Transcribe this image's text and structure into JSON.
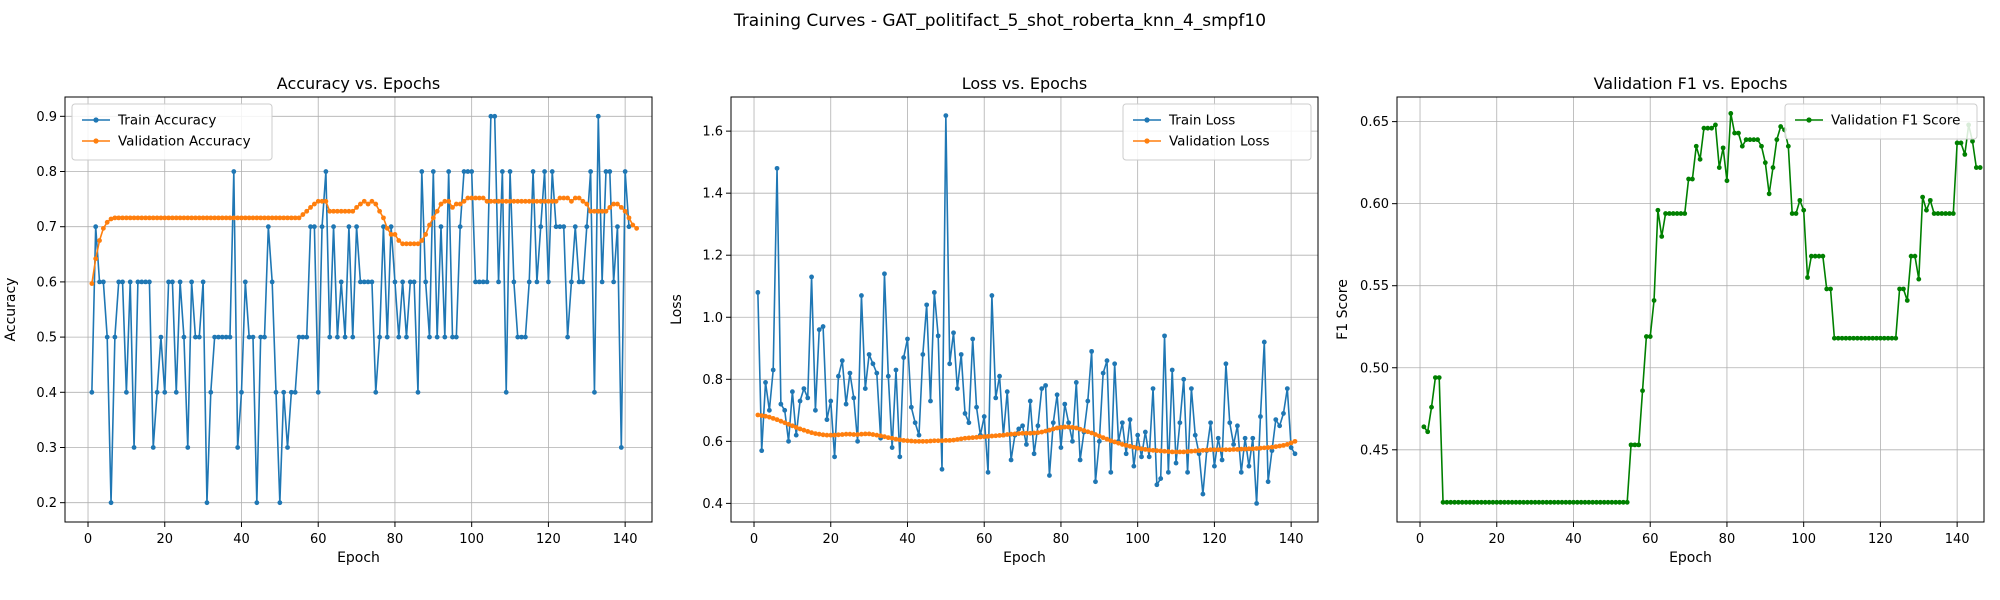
{
  "figure": {
    "suptitle": "Training Curves - GAT_politifact_5_shot_roberta_knn_4_smpf10"
  },
  "colors": {
    "train": "#1f77b4",
    "validation": "#ff7f0e",
    "f1": "#008000",
    "grid": "#b0b0b0"
  },
  "chart_data": [
    {
      "type": "line",
      "title": "Accuracy vs. Epochs",
      "xlabel": "Epoch",
      "ylabel": "Accuracy",
      "xlim": [
        -6,
        147
      ],
      "ylim": [
        0.165,
        0.935
      ],
      "xticks": [
        0,
        20,
        40,
        60,
        80,
        100,
        120,
        140
      ],
      "yticks": [
        0.2,
        0.3,
        0.4,
        0.5,
        0.6,
        0.7,
        0.8,
        0.9
      ],
      "grid": true,
      "legend": "upper-left",
      "x_start": 1,
      "series": [
        {
          "name": "Train Accuracy",
          "color": "#1f77b4",
          "values": [
            0.4,
            0.7,
            0.6,
            0.6,
            0.5,
            0.2,
            0.5,
            0.6,
            0.6,
            0.4,
            0.6,
            0.3,
            0.6,
            0.6,
            0.6,
            0.6,
            0.3,
            0.4,
            0.5,
            0.4,
            0.6,
            0.6,
            0.4,
            0.6,
            0.5,
            0.3,
            0.6,
            0.5,
            0.5,
            0.6,
            0.2,
            0.4,
            0.5,
            0.5,
            0.5,
            0.5,
            0.5,
            0.8,
            0.3,
            0.4,
            0.6,
            0.5,
            0.5,
            0.2,
            0.5,
            0.5,
            0.7,
            0.6,
            0.4,
            0.2,
            0.4,
            0.3,
            0.4,
            0.4,
            0.5,
            0.5,
            0.5,
            0.7,
            0.7,
            0.4,
            0.7,
            0.8,
            0.5,
            0.7,
            0.5,
            0.6,
            0.5,
            0.7,
            0.5,
            0.7,
            0.6,
            0.6,
            0.6,
            0.6,
            0.4,
            0.5,
            0.7,
            0.5,
            0.7,
            0.6,
            0.5,
            0.6,
            0.5,
            0.6,
            0.6,
            0.4,
            0.8,
            0.6,
            0.5,
            0.8,
            0.5,
            0.7,
            0.5,
            0.8,
            0.5,
            0.5,
            0.7,
            0.8,
            0.8,
            0.8,
            0.6,
            0.6,
            0.6,
            0.6,
            0.9,
            0.9,
            0.6,
            0.8,
            0.4,
            0.8,
            0.6,
            0.5,
            0.5,
            0.5,
            0.6,
            0.8,
            0.6,
            0.7,
            0.8,
            0.6,
            0.8,
            0.7,
            0.7,
            0.7,
            0.5,
            0.6,
            0.7,
            0.6,
            0.6,
            0.7,
            0.8,
            0.4,
            0.9,
            0.6,
            0.8,
            0.8,
            0.6,
            0.7,
            0.3,
            0.8,
            0.7
          ]
        },
        {
          "name": "Validation Accuracy",
          "color": "#ff7f0e",
          "values": [
            0.597,
            0.642,
            0.675,
            0.697,
            0.708,
            0.714,
            0.716,
            0.716,
            0.716,
            0.716,
            0.716,
            0.716,
            0.716,
            0.716,
            0.716,
            0.716,
            0.716,
            0.716,
            0.716,
            0.716,
            0.716,
            0.716,
            0.716,
            0.716,
            0.716,
            0.716,
            0.716,
            0.716,
            0.716,
            0.716,
            0.716,
            0.716,
            0.716,
            0.716,
            0.716,
            0.716,
            0.716,
            0.716,
            0.716,
            0.716,
            0.716,
            0.716,
            0.716,
            0.716,
            0.716,
            0.716,
            0.716,
            0.716,
            0.716,
            0.716,
            0.716,
            0.716,
            0.716,
            0.716,
            0.716,
            0.722,
            0.728,
            0.735,
            0.741,
            0.746,
            0.746,
            0.746,
            0.728,
            0.728,
            0.728,
            0.728,
            0.728,
            0.728,
            0.728,
            0.735,
            0.741,
            0.746,
            0.741,
            0.746,
            0.741,
            0.728,
            0.716,
            0.697,
            0.686,
            0.686,
            0.675,
            0.669,
            0.669,
            0.669,
            0.669,
            0.669,
            0.675,
            0.686,
            0.703,
            0.716,
            0.728,
            0.741,
            0.746,
            0.746,
            0.735,
            0.741,
            0.741,
            0.746,
            0.752,
            0.752,
            0.752,
            0.752,
            0.752,
            0.746,
            0.746,
            0.746,
            0.746,
            0.746,
            0.746,
            0.746,
            0.746,
            0.746,
            0.746,
            0.746,
            0.746,
            0.746,
            0.746,
            0.746,
            0.746,
            0.746,
            0.746,
            0.746,
            0.752,
            0.752,
            0.752,
            0.746,
            0.752,
            0.752,
            0.746,
            0.741,
            0.728,
            0.728,
            0.728,
            0.728,
            0.728,
            0.735,
            0.741,
            0.741,
            0.735,
            0.728,
            0.716,
            0.703,
            0.697
          ]
        }
      ]
    },
    {
      "type": "line",
      "title": "Loss vs. Epochs",
      "xlabel": "Epoch",
      "ylabel": "Loss",
      "xlim": [
        -6,
        147
      ],
      "ylim": [
        0.34,
        1.71
      ],
      "xticks": [
        0,
        20,
        40,
        60,
        80,
        100,
        120,
        140
      ],
      "yticks": [
        0.4,
        0.6,
        0.8,
        1.0,
        1.2,
        1.4,
        1.6
      ],
      "ytick_format": "1",
      "grid": true,
      "legend": "upper-right",
      "x_start": 1,
      "series": [
        {
          "name": "Train Loss",
          "color": "#1f77b4",
          "values": [
            1.08,
            0.57,
            0.79,
            0.7,
            0.83,
            1.48,
            0.72,
            0.7,
            0.6,
            0.76,
            0.62,
            0.73,
            0.77,
            0.74,
            1.13,
            0.7,
            0.96,
            0.97,
            0.67,
            0.73,
            0.55,
            0.81,
            0.86,
            0.72,
            0.82,
            0.74,
            0.6,
            1.07,
            0.77,
            0.88,
            0.85,
            0.82,
            0.61,
            1.14,
            0.81,
            0.58,
            0.83,
            0.55,
            0.87,
            0.93,
            0.71,
            0.66,
            0.62,
            0.88,
            1.04,
            0.73,
            1.08,
            0.94,
            0.51,
            1.65,
            0.85,
            0.95,
            0.77,
            0.88,
            0.69,
            0.66,
            0.93,
            0.71,
            0.62,
            0.68,
            0.5,
            1.07,
            0.74,
            0.81,
            0.62,
            0.76,
            0.54,
            0.62,
            0.64,
            0.65,
            0.59,
            0.73,
            0.56,
            0.65,
            0.77,
            0.78,
            0.49,
            0.66,
            0.75,
            0.58,
            0.72,
            0.66,
            0.6,
            0.79,
            0.54,
            0.63,
            0.73,
            0.89,
            0.47,
            0.6,
            0.82,
            0.86,
            0.5,
            0.85,
            0.6,
            0.66,
            0.56,
            0.67,
            0.52,
            0.62,
            0.55,
            0.63,
            0.55,
            0.77,
            0.46,
            0.48,
            0.94,
            0.5,
            0.83,
            0.53,
            0.66,
            0.8,
            0.5,
            0.77,
            0.62,
            0.56,
            0.43,
            0.57,
            0.66,
            0.52,
            0.61,
            0.54,
            0.85,
            0.66,
            0.59,
            0.65,
            0.5,
            0.61,
            0.52,
            0.61,
            0.4,
            0.68,
            0.92,
            0.47,
            0.57,
            0.67,
            0.65,
            0.69,
            0.77,
            0.58,
            0.56
          ]
        },
        {
          "name": "Validation Loss",
          "color": "#ff7f0e",
          "values": [
            0.685,
            0.683,
            0.681,
            0.678,
            0.674,
            0.67,
            0.665,
            0.66,
            0.655,
            0.65,
            0.645,
            0.64,
            0.636,
            0.632,
            0.628,
            0.625,
            0.623,
            0.621,
            0.62,
            0.62,
            0.62,
            0.621,
            0.622,
            0.623,
            0.623,
            0.622,
            0.622,
            0.623,
            0.624,
            0.624,
            0.622,
            0.62,
            0.618,
            0.615,
            0.612,
            0.61,
            0.607,
            0.605,
            0.603,
            0.602,
            0.601,
            0.6,
            0.6,
            0.6,
            0.6,
            0.601,
            0.602,
            0.602,
            0.602,
            0.603,
            0.603,
            0.604,
            0.606,
            0.608,
            0.61,
            0.611,
            0.612,
            0.613,
            0.614,
            0.615,
            0.616,
            0.617,
            0.618,
            0.619,
            0.62,
            0.622,
            0.623,
            0.624,
            0.625,
            0.626,
            0.626,
            0.626,
            0.627,
            0.628,
            0.63,
            0.633,
            0.636,
            0.64,
            0.643,
            0.645,
            0.646,
            0.646,
            0.645,
            0.643,
            0.639,
            0.635,
            0.631,
            0.627,
            0.622,
            0.617,
            0.612,
            0.607,
            0.602,
            0.598,
            0.594,
            0.59,
            0.587,
            0.584,
            0.581,
            0.578,
            0.576,
            0.574,
            0.572,
            0.571,
            0.57,
            0.569,
            0.568,
            0.567,
            0.566,
            0.566,
            0.566,
            0.566,
            0.567,
            0.568,
            0.569,
            0.57,
            0.571,
            0.572,
            0.573,
            0.573,
            0.573,
            0.573,
            0.573,
            0.573,
            0.574,
            0.574,
            0.575,
            0.575,
            0.576,
            0.576,
            0.577,
            0.578,
            0.579,
            0.58,
            0.581,
            0.583,
            0.585,
            0.587,
            0.59,
            0.595,
            0.6
          ]
        }
      ]
    },
    {
      "type": "line",
      "title": "Validation F1 vs. Epochs",
      "xlabel": "Epoch",
      "ylabel": "F1 Score",
      "xlim": [
        -6,
        147
      ],
      "ylim": [
        0.406,
        0.665
      ],
      "xticks": [
        0,
        20,
        40,
        60,
        80,
        100,
        120,
        140
      ],
      "yticks": [
        0.45,
        0.5,
        0.55,
        0.6,
        0.65
      ],
      "ytick_format": "2",
      "grid": true,
      "legend": "upper-right",
      "x_start": 1,
      "series": [
        {
          "name": "Validation F1 Score",
          "color": "#008000",
          "values": [
            0.464,
            0.461,
            0.476,
            0.494,
            0.494,
            0.418,
            0.418,
            0.418,
            0.418,
            0.418,
            0.418,
            0.418,
            0.418,
            0.418,
            0.418,
            0.418,
            0.418,
            0.418,
            0.418,
            0.418,
            0.418,
            0.418,
            0.418,
            0.418,
            0.418,
            0.418,
            0.418,
            0.418,
            0.418,
            0.418,
            0.418,
            0.418,
            0.418,
            0.418,
            0.418,
            0.418,
            0.418,
            0.418,
            0.418,
            0.418,
            0.418,
            0.418,
            0.418,
            0.418,
            0.418,
            0.418,
            0.418,
            0.418,
            0.418,
            0.418,
            0.418,
            0.418,
            0.418,
            0.418,
            0.453,
            0.453,
            0.453,
            0.486,
            0.519,
            0.519,
            0.541,
            0.596,
            0.58,
            0.594,
            0.594,
            0.594,
            0.594,
            0.594,
            0.594,
            0.615,
            0.615,
            0.635,
            0.627,
            0.646,
            0.646,
            0.646,
            0.648,
            0.622,
            0.634,
            0.614,
            0.655,
            0.643,
            0.643,
            0.635,
            0.639,
            0.639,
            0.639,
            0.639,
            0.635,
            0.625,
            0.606,
            0.622,
            0.639,
            0.647,
            0.645,
            0.635,
            0.594,
            0.594,
            0.602,
            0.596,
            0.555,
            0.568,
            0.568,
            0.568,
            0.568,
            0.548,
            0.548,
            0.518,
            0.518,
            0.518,
            0.518,
            0.518,
            0.518,
            0.518,
            0.518,
            0.518,
            0.518,
            0.518,
            0.518,
            0.518,
            0.518,
            0.518,
            0.518,
            0.518,
            0.548,
            0.548,
            0.541,
            0.568,
            0.568,
            0.554,
            0.604,
            0.596,
            0.602,
            0.594,
            0.594,
            0.594,
            0.594,
            0.594,
            0.594,
            0.637,
            0.637,
            0.63,
            0.648,
            0.638,
            0.622,
            0.622
          ]
        }
      ]
    }
  ]
}
